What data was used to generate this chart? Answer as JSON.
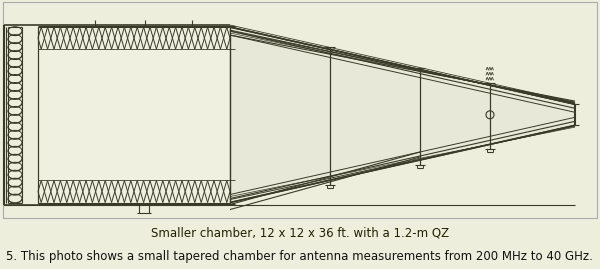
{
  "bg_color": "#eeeedd",
  "line_color": "#3a3a28",
  "caption_text": "Smaller chamber, 12 x 12 x 36 ft. with a 1.2-m QZ",
  "footnote_text": "5. This photo shows a small tapered chamber for antenna measurements from 200 MHz to 40 GHz.",
  "caption_fontsize": 8.5,
  "footnote_fontsize": 8.5,
  "fig_width": 6.0,
  "fig_height": 2.69,
  "dpi": 100
}
